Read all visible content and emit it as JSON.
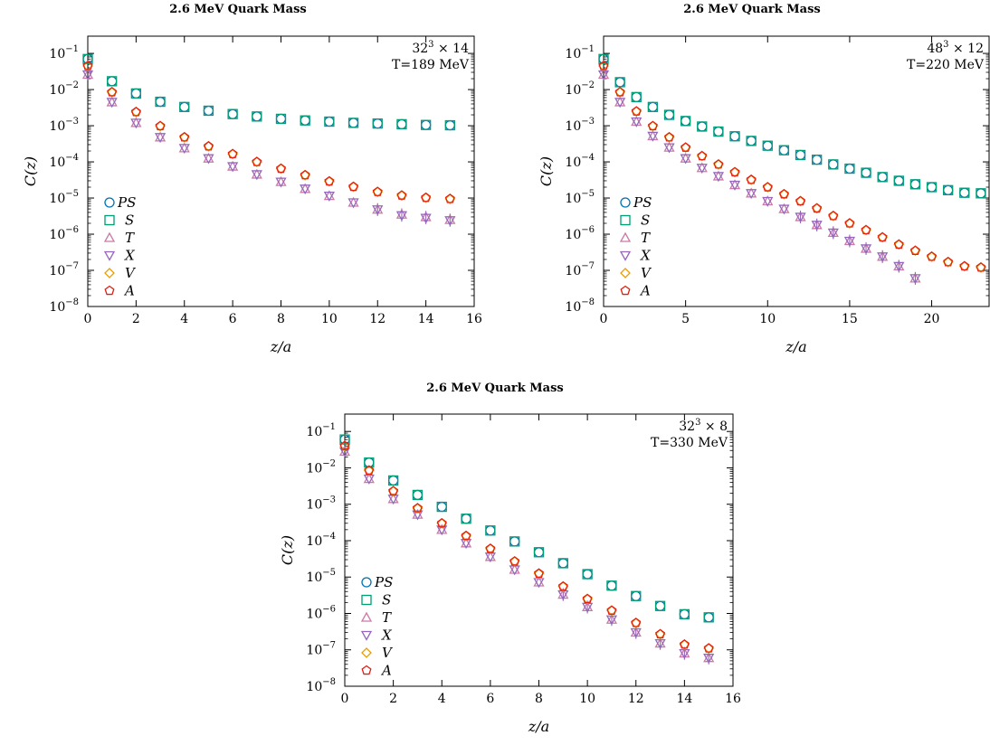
{
  "colors": {
    "PS": "#0072b2",
    "S": "#009e73",
    "T": "#cc79a7",
    "X": "#9467bd",
    "V": "#e69f00",
    "A": "#e51e10"
  },
  "legend_markers": {
    "PS": "circle",
    "S": "square",
    "T": "triangle-up",
    "X": "triangle-down",
    "V": "diamond",
    "A": "pentagon"
  },
  "y_tick_labels": [
    {
      "mant": "10",
      "exp": "−8"
    },
    {
      "mant": "10",
      "exp": "−7"
    },
    {
      "mant": "10",
      "exp": "−6"
    },
    {
      "mant": "10",
      "exp": "−5"
    },
    {
      "mant": "10",
      "exp": "−4"
    },
    {
      "mant": "10",
      "exp": "−3"
    },
    {
      "mant": "10",
      "exp": "−2"
    },
    {
      "mant": "10",
      "exp": "−1"
    }
  ],
  "chart_data": [
    {
      "type": "scatter",
      "title": "2.6 MeV Quark Mass",
      "xlabel": "z/a",
      "ylabel": "C(z)",
      "yscale": "log",
      "xlim": [
        0,
        16
      ],
      "ylim": [
        1e-08,
        0.3
      ],
      "x_ticks": [
        0,
        2,
        4,
        6,
        8,
        10,
        12,
        14,
        16
      ],
      "annotation": {
        "lattice_base": "32",
        "lattice_exp": "3",
        "lattice_rest": " × 14",
        "temperature": "T=189 MeV"
      },
      "legend_position": "bottom-left",
      "series": [
        {
          "name": "PS",
          "x": [
            0,
            1,
            2,
            3,
            4,
            5,
            6,
            7,
            8,
            9,
            10,
            11,
            12,
            13,
            14,
            15
          ],
          "values": [
            0.07,
            0.017,
            0.0078,
            0.0046,
            0.0033,
            0.0026,
            0.0021,
            0.0018,
            0.00155,
            0.0014,
            0.0013,
            0.0012,
            0.00115,
            0.0011,
            0.00105,
            0.00103
          ]
        },
        {
          "name": "S",
          "x": [
            0,
            1,
            2,
            3,
            4,
            5,
            6,
            7,
            8,
            9,
            10,
            11,
            12,
            13,
            14,
            15
          ],
          "values": [
            0.07,
            0.017,
            0.0078,
            0.0046,
            0.0033,
            0.0026,
            0.0021,
            0.0018,
            0.00155,
            0.0014,
            0.0013,
            0.0012,
            0.00115,
            0.0011,
            0.00105,
            0.00103
          ]
        },
        {
          "name": "T",
          "x": [
            0,
            1,
            2,
            3,
            4,
            5,
            6,
            7,
            8,
            9,
            10,
            11,
            12,
            13,
            14,
            15
          ],
          "values": [
            0.026,
            0.0045,
            0.0012,
            0.00048,
            0.00024,
            0.000125,
            7.5e-05,
            4.5e-05,
            2.8e-05,
            1.8e-05,
            1.15e-05,
            7.5e-06,
            4.8e-06,
            3.5e-06,
            3e-06,
            2.5e-06
          ]
        },
        {
          "name": "X",
          "x": [
            0,
            1,
            2,
            3,
            4,
            5,
            6,
            7,
            8,
            9,
            10,
            11,
            12,
            13,
            14,
            15
          ],
          "values": [
            0.026,
            0.0045,
            0.0012,
            0.00048,
            0.00024,
            0.000125,
            7.5e-05,
            4.5e-05,
            2.8e-05,
            1.8e-05,
            1.15e-05,
            7.5e-06,
            4.8e-06,
            3.3e-06,
            2.8e-06,
            2.4e-06
          ]
        },
        {
          "name": "V",
          "x": [
            0,
            1,
            2,
            3,
            4,
            5,
            6,
            7,
            8,
            9,
            10,
            11,
            12,
            13,
            14,
            15
          ],
          "values": [
            0.045,
            0.0085,
            0.0024,
            0.00098,
            0.00048,
            0.00027,
            0.000165,
            0.0001,
            6.5e-05,
            4.3e-05,
            2.9e-05,
            2.05e-05,
            1.48e-05,
            1.18e-05,
            1.02e-05,
            9.5e-06
          ]
        },
        {
          "name": "A",
          "x": [
            0,
            1,
            2,
            3,
            4,
            5,
            6,
            7,
            8,
            9,
            10,
            11,
            12,
            13,
            14,
            15
          ],
          "values": [
            0.045,
            0.0085,
            0.0024,
            0.00098,
            0.00048,
            0.00027,
            0.000165,
            0.0001,
            6.5e-05,
            4.3e-05,
            2.9e-05,
            2.05e-05,
            1.48e-05,
            1.18e-05,
            1.02e-05,
            9.5e-06
          ]
        }
      ]
    },
    {
      "type": "scatter",
      "title": "2.6 MeV Quark Mass",
      "xlabel": "z/a",
      "ylabel": "C(z)",
      "yscale": "log",
      "xlim": [
        0,
        23.5
      ],
      "ylim": [
        1e-08,
        0.3
      ],
      "x_ticks": [
        0,
        5,
        10,
        15,
        20
      ],
      "annotation": {
        "lattice_base": "48",
        "lattice_exp": "3",
        "lattice_rest": " × 12",
        "temperature": "T=220 MeV"
      },
      "legend_position": "bottom-left",
      "series": [
        {
          "name": "PS",
          "x": [
            0,
            1,
            2,
            3,
            4,
            5,
            6,
            7,
            8,
            9,
            10,
            11,
            12,
            13,
            14,
            15,
            16,
            17,
            18,
            19,
            20,
            21,
            22,
            23
          ],
          "values": [
            0.07,
            0.016,
            0.0062,
            0.0033,
            0.002,
            0.00135,
            0.00095,
            0.00069,
            0.00051,
            0.00038,
            0.00028,
            0.00021,
            0.000155,
            0.000115,
            8.5e-05,
            6.5e-05,
            5e-05,
            3.8e-05,
            3e-05,
            2.4e-05,
            2e-05,
            1.65e-05,
            1.4e-05,
            1.35e-05
          ]
        },
        {
          "name": "S",
          "x": [
            0,
            1,
            2,
            3,
            4,
            5,
            6,
            7,
            8,
            9,
            10,
            11,
            12,
            13,
            14,
            15,
            16,
            17,
            18,
            19,
            20,
            21,
            22,
            23
          ],
          "values": [
            0.07,
            0.016,
            0.0062,
            0.0033,
            0.002,
            0.00135,
            0.00095,
            0.00069,
            0.00051,
            0.00038,
            0.00028,
            0.00021,
            0.000155,
            0.000115,
            8.5e-05,
            6.5e-05,
            5e-05,
            3.8e-05,
            3e-05,
            2.4e-05,
            2e-05,
            1.65e-05,
            1.4e-05,
            1.35e-05
          ]
        },
        {
          "name": "T",
          "x": [
            0,
            1,
            2,
            3,
            4,
            5,
            6,
            7,
            8,
            9,
            10,
            11,
            12,
            13,
            14,
            15,
            16,
            17,
            18,
            19
          ],
          "values": [
            0.026,
            0.0045,
            0.0013,
            0.00052,
            0.00025,
            0.000125,
            6.8e-05,
            4e-05,
            2.3e-05,
            1.35e-05,
            8.2e-06,
            5e-06,
            3e-06,
            1.8e-06,
            1.1e-06,
            6.5e-07,
            4e-07,
            2.4e-07,
            1.3e-07,
            6e-08
          ]
        },
        {
          "name": "X",
          "x": [
            0,
            1,
            2,
            3,
            4,
            5,
            6,
            7,
            8,
            9,
            10,
            11,
            12,
            13,
            14,
            15,
            16,
            17,
            18,
            19
          ],
          "values": [
            0.026,
            0.0045,
            0.0013,
            0.00052,
            0.00025,
            0.000125,
            6.8e-05,
            4e-05,
            2.3e-05,
            1.35e-05,
            8.2e-06,
            5e-06,
            3e-06,
            1.8e-06,
            1.1e-06,
            6.5e-07,
            4e-07,
            2.4e-07,
            1.3e-07,
            6e-08
          ]
        },
        {
          "name": "V",
          "x": [
            0,
            1,
            2,
            3,
            4,
            5,
            6,
            7,
            8,
            9,
            10,
            11,
            12,
            13,
            14,
            15,
            16,
            17,
            18,
            19,
            20,
            21,
            22,
            23
          ],
          "values": [
            0.045,
            0.0085,
            0.0025,
            0.00098,
            0.00048,
            0.00025,
            0.000145,
            8.5e-05,
            5.2e-05,
            3.2e-05,
            2e-05,
            1.28e-05,
            8.2e-06,
            5.2e-06,
            3.2e-06,
            2e-06,
            1.3e-06,
            8.2e-07,
            5.2e-07,
            3.5e-07,
            2.4e-07,
            1.7e-07,
            1.3e-07,
            1.2e-07
          ]
        },
        {
          "name": "A",
          "x": [
            0,
            1,
            2,
            3,
            4,
            5,
            6,
            7,
            8,
            9,
            10,
            11,
            12,
            13,
            14,
            15,
            16,
            17,
            18,
            19,
            20,
            21,
            22,
            23
          ],
          "values": [
            0.045,
            0.0085,
            0.0025,
            0.00098,
            0.00048,
            0.00025,
            0.000145,
            8.5e-05,
            5.2e-05,
            3.2e-05,
            2e-05,
            1.28e-05,
            8.2e-06,
            5.2e-06,
            3.2e-06,
            2e-06,
            1.3e-06,
            8.2e-07,
            5.2e-07,
            3.5e-07,
            2.4e-07,
            1.7e-07,
            1.3e-07,
            1.2e-07
          ]
        }
      ]
    },
    {
      "type": "scatter",
      "title": "2.6 MeV Quark Mass",
      "xlabel": "z/a",
      "ylabel": "C(z)",
      "yscale": "log",
      "xlim": [
        0,
        16
      ],
      "ylim": [
        1e-08,
        0.3
      ],
      "x_ticks": [
        0,
        2,
        4,
        6,
        8,
        10,
        12,
        14,
        16
      ],
      "annotation": {
        "lattice_base": "32",
        "lattice_exp": "3",
        "lattice_rest": " × 8",
        "temperature": "T=330 MeV"
      },
      "legend_position": "bottom-left",
      "series": [
        {
          "name": "PS",
          "x": [
            0,
            1,
            2,
            3,
            4,
            5,
            6,
            7,
            8,
            9,
            10,
            11,
            12,
            13,
            14,
            15
          ],
          "values": [
            0.06,
            0.014,
            0.0045,
            0.0018,
            0.00085,
            0.0004,
            0.00019,
            9.5e-05,
            4.8e-05,
            2.4e-05,
            1.2e-05,
            5.8e-06,
            3e-06,
            1.6e-06,
            9.5e-07,
            7.8e-07
          ]
        },
        {
          "name": "S",
          "x": [
            0,
            1,
            2,
            3,
            4,
            5,
            6,
            7,
            8,
            9,
            10,
            11,
            12,
            13,
            14,
            15
          ],
          "values": [
            0.06,
            0.014,
            0.0045,
            0.0018,
            0.00085,
            0.0004,
            0.00019,
            9.5e-05,
            4.8e-05,
            2.4e-05,
            1.2e-05,
            5.8e-06,
            3e-06,
            1.6e-06,
            9.5e-07,
            7.8e-07
          ]
        },
        {
          "name": "T",
          "x": [
            0,
            1,
            2,
            3,
            4,
            5,
            6,
            7,
            8,
            9,
            10,
            11,
            12,
            13,
            14,
            15
          ],
          "values": [
            0.028,
            0.005,
            0.0014,
            0.00052,
            0.0002,
            8.5e-05,
            3.6e-05,
            1.6e-05,
            7.2e-06,
            3.3e-06,
            1.5e-06,
            6.8e-07,
            3e-07,
            1.5e-07,
            8e-08,
            6e-08
          ]
        },
        {
          "name": "X",
          "x": [
            0,
            1,
            2,
            3,
            4,
            5,
            6,
            7,
            8,
            9,
            10,
            11,
            12,
            13,
            14,
            15
          ],
          "values": [
            0.028,
            0.005,
            0.0014,
            0.00052,
            0.0002,
            8.5e-05,
            3.6e-05,
            1.6e-05,
            7.2e-06,
            3.3e-06,
            1.5e-06,
            6.8e-07,
            3e-07,
            1.5e-07,
            8e-08,
            6e-08
          ]
        },
        {
          "name": "V",
          "x": [
            0,
            1,
            2,
            3,
            4,
            5,
            6,
            7,
            8,
            9,
            10,
            11,
            12,
            13,
            14,
            15
          ],
          "values": [
            0.04,
            0.0085,
            0.0023,
            0.00078,
            0.0003,
            0.000135,
            6e-05,
            2.7e-05,
            1.25e-05,
            5.5e-06,
            2.5e-06,
            1.2e-06,
            5.5e-07,
            2.7e-07,
            1.4e-07,
            1.1e-07
          ]
        },
        {
          "name": "A",
          "x": [
            0,
            1,
            2,
            3,
            4,
            5,
            6,
            7,
            8,
            9,
            10,
            11,
            12,
            13,
            14,
            15
          ],
          "values": [
            0.04,
            0.0085,
            0.0023,
            0.00078,
            0.0003,
            0.000135,
            6e-05,
            2.7e-05,
            1.25e-05,
            5.5e-06,
            2.5e-06,
            1.2e-06,
            5.5e-07,
            2.7e-07,
            1.4e-07,
            1.1e-07
          ]
        }
      ]
    }
  ]
}
